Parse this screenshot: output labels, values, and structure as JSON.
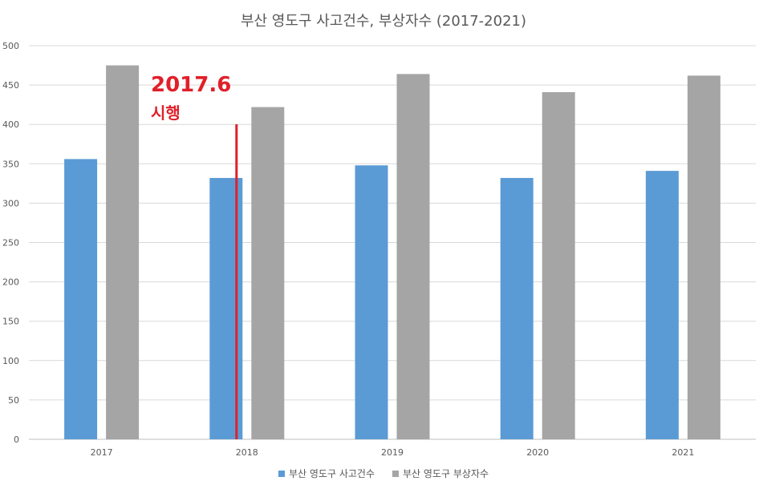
{
  "chart_data": {
    "type": "bar",
    "title": "부산 영도구 사고건수, 부상자수 (2017-2021)",
    "categories": [
      "2017",
      "2018",
      "2019",
      "2020",
      "2021"
    ],
    "series": [
      {
        "name": "부산 영도구 사고건수",
        "values": [
          356,
          332,
          348,
          332,
          341
        ],
        "color": "#5b9bd5"
      },
      {
        "name": "부산 영도구 부상자수",
        "values": [
          475,
          422,
          464,
          441,
          462
        ],
        "color": "#a5a5a5"
      }
    ],
    "ylim": [
      0,
      500
    ],
    "yticks": [
      0,
      50,
      100,
      150,
      200,
      250,
      300,
      350,
      400,
      450,
      500
    ],
    "grid": true,
    "legend_position": "bottom",
    "annotation": {
      "year": "2017.6",
      "text": "시행",
      "color": "#e0202a",
      "x_position": 1.5
    }
  }
}
